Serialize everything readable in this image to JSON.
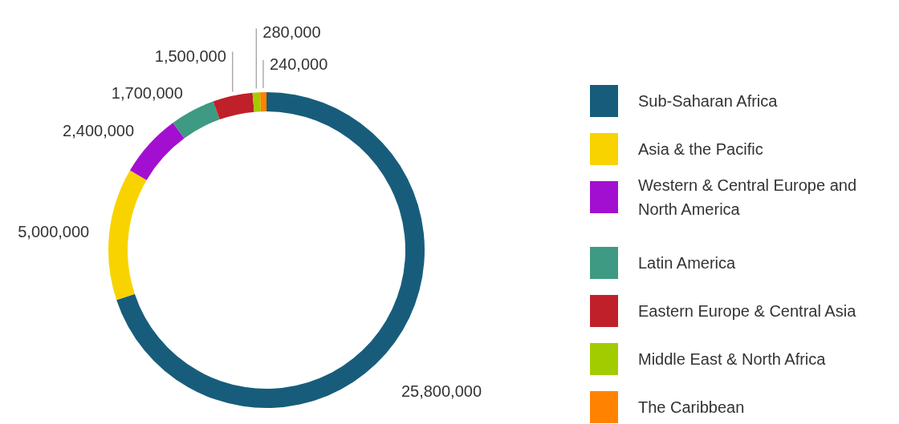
{
  "chart_data": {
    "type": "donut",
    "categories": [
      "Sub-Saharan Africa",
      "Asia & the Pacific",
      "Western & Central Europe and North America",
      "Latin America",
      "Eastern Europe & Central Asia",
      "Middle East & North Africa",
      "The Caribbean"
    ],
    "values": [
      25800000,
      5000000,
      2400000,
      1700000,
      1500000,
      280000,
      240000
    ],
    "colors": [
      "#175d7b",
      "#f8d300",
      "#a30fd0",
      "#3e9a82",
      "#c0202a",
      "#a2cc00",
      "#ff8300"
    ],
    "value_labels": [
      "25,800,000",
      "5,000,000",
      "2,400,000",
      "1,700,000",
      "1,500,000",
      "280,000",
      "240,000"
    ],
    "legend": "right"
  }
}
